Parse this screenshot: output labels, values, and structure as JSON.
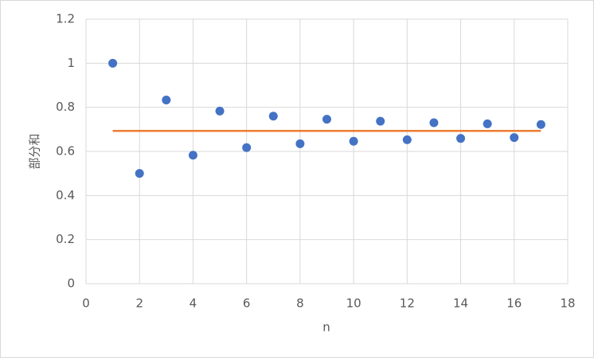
{
  "chart_data": {
    "type": "scatter",
    "x_label": "n",
    "y_label": "部分和",
    "series": [
      {
        "type": "scatter",
        "color": "#4472c4",
        "x": [
          1,
          2,
          3,
          4,
          5,
          6,
          7,
          8,
          9,
          10,
          11,
          12,
          13,
          14,
          15,
          16,
          17
        ],
        "values": [
          1,
          0.5,
          0.833,
          0.583,
          0.783,
          0.617,
          0.76,
          0.635,
          0.746,
          0.646,
          0.737,
          0.653,
          0.73,
          0.659,
          0.725,
          0.663,
          0.722
        ]
      },
      {
        "type": "line",
        "color": "#ed7d31",
        "x": [
          1,
          17
        ],
        "values": [
          0.693,
          0.693
        ]
      }
    ],
    "xlim": [
      0,
      18
    ],
    "xticks": [
      0,
      2,
      4,
      6,
      8,
      10,
      12,
      14,
      16,
      18
    ],
    "ylim": [
      0,
      1.2
    ],
    "yticks": [
      0,
      0.2,
      0.4,
      0.6,
      0.8,
      1,
      1.2
    ],
    "grid": true
  }
}
